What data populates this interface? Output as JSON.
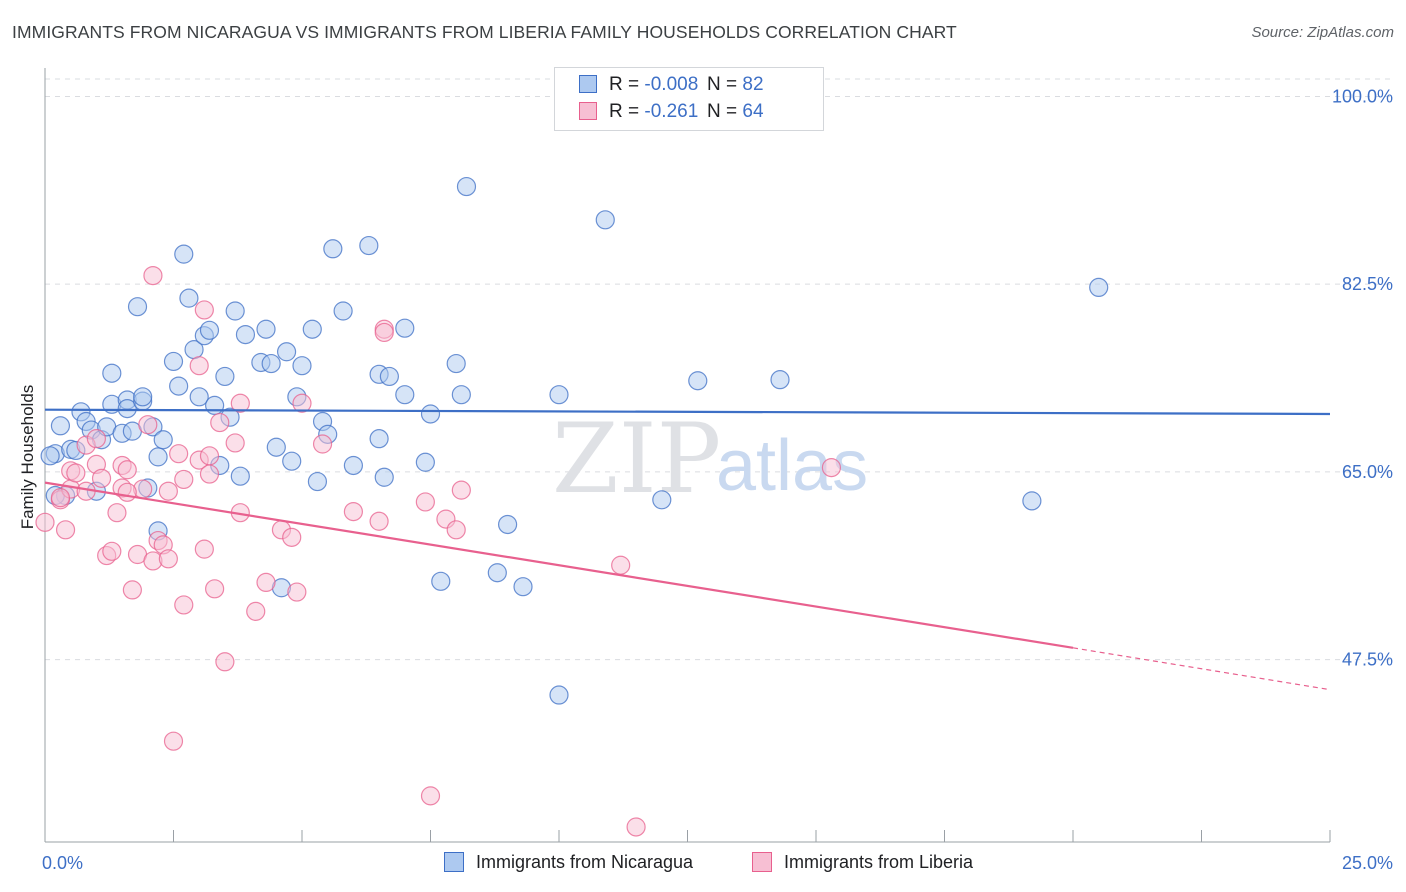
{
  "header": {
    "title": "IMMIGRANTS FROM NICARAGUA VS IMMIGRANTS FROM LIBERIA FAMILY HOUSEHOLDS CORRELATION CHART",
    "source": "Source: ZipAtlas.com"
  },
  "watermark": {
    "zip": "ZIP",
    "atlas": "atlas"
  },
  "legend_top": {
    "r_label": "R =",
    "n_label": "N =",
    "rows": [
      {
        "r": "-0.008",
        "n": "82",
        "color": "#3d6fc6"
      },
      {
        "r": "-0.261",
        "n": "64",
        "color": "#e8608e"
      }
    ]
  },
  "chart_data": {
    "type": "scatter",
    "ylabel": "Family Households",
    "xlabel": "",
    "xlim": [
      0,
      25
    ],
    "ylim": [
      30.5,
      102
    ],
    "x_tick_labels": [
      "0.0%",
      "25.0%"
    ],
    "y_ticks": [
      47.5,
      65.0,
      82.5,
      100.0
    ],
    "y_tick_labels": [
      "47.5%",
      "65.0%",
      "82.5%",
      "100.0%"
    ],
    "grid": true,
    "legend_position": "bottom",
    "series": [
      {
        "name": "Immigrants from Nicaragua",
        "color": "#3d6fc6",
        "fill": "#adc9f0",
        "trend": {
          "x": [
            0,
            25
          ],
          "y": [
            70.8,
            70.4
          ]
        },
        "points": [
          [
            0.2,
            66.7
          ],
          [
            0.3,
            69.3
          ],
          [
            0.4,
            62.8
          ],
          [
            0.5,
            67.1
          ],
          [
            0.6,
            67.0
          ],
          [
            0.7,
            70.6
          ],
          [
            0.8,
            69.7
          ],
          [
            0.9,
            68.9
          ],
          [
            1.0,
            63.2
          ],
          [
            1.1,
            68.0
          ],
          [
            1.2,
            69.2
          ],
          [
            1.3,
            74.2
          ],
          [
            1.3,
            71.3
          ],
          [
            1.5,
            68.6
          ],
          [
            1.6,
            71.7
          ],
          [
            1.6,
            70.9
          ],
          [
            1.7,
            68.8
          ],
          [
            1.8,
            80.4
          ],
          [
            1.9,
            71.6
          ],
          [
            2.0,
            63.5
          ],
          [
            2.1,
            69.2
          ],
          [
            2.2,
            59.5
          ],
          [
            2.2,
            66.4
          ],
          [
            2.3,
            68.0
          ],
          [
            2.5,
            75.3
          ],
          [
            2.6,
            73.0
          ],
          [
            2.7,
            85.3
          ],
          [
            2.8,
            81.2
          ],
          [
            2.9,
            76.4
          ],
          [
            3.0,
            72.0
          ],
          [
            3.1,
            77.7
          ],
          [
            3.2,
            78.2
          ],
          [
            3.3,
            71.2
          ],
          [
            3.4,
            65.6
          ],
          [
            3.5,
            73.9
          ],
          [
            3.6,
            70.1
          ],
          [
            3.7,
            80.0
          ],
          [
            3.8,
            64.6
          ],
          [
            3.9,
            77.8
          ],
          [
            4.2,
            75.2
          ],
          [
            4.3,
            78.3
          ],
          [
            4.4,
            75.1
          ],
          [
            4.5,
            67.3
          ],
          [
            4.6,
            54.2
          ],
          [
            4.7,
            76.2
          ],
          [
            4.8,
            66.0
          ],
          [
            4.9,
            72.0
          ],
          [
            5.0,
            74.9
          ],
          [
            5.2,
            78.3
          ],
          [
            5.3,
            64.1
          ],
          [
            5.4,
            69.7
          ],
          [
            5.5,
            68.5
          ],
          [
            5.6,
            85.8
          ],
          [
            5.8,
            80.0
          ],
          [
            6.0,
            65.6
          ],
          [
            6.3,
            86.1
          ],
          [
            6.5,
            74.1
          ],
          [
            6.5,
            68.1
          ],
          [
            6.6,
            64.5
          ],
          [
            6.7,
            73.9
          ],
          [
            7.0,
            72.2
          ],
          [
            7.0,
            78.4
          ],
          [
            7.4,
            65.9
          ],
          [
            7.5,
            70.4
          ],
          [
            7.7,
            54.8
          ],
          [
            8.0,
            75.1
          ],
          [
            8.1,
            72.2
          ],
          [
            8.2,
            91.6
          ],
          [
            8.8,
            55.6
          ],
          [
            9.0,
            60.1
          ],
          [
            9.3,
            54.3
          ],
          [
            10.0,
            44.2
          ],
          [
            10.0,
            72.2
          ],
          [
            10.9,
            88.5
          ],
          [
            12.0,
            62.4
          ],
          [
            12.7,
            73.5
          ],
          [
            14.3,
            73.6
          ],
          [
            19.2,
            62.3
          ],
          [
            20.5,
            82.2
          ],
          [
            0.1,
            66.5
          ],
          [
            0.2,
            62.8
          ],
          [
            1.9,
            72.0
          ]
        ]
      },
      {
        "name": "Immigrants from Liberia",
        "color": "#e8608e",
        "fill": "#f7bfd3",
        "trend": {
          "x": [
            0,
            20
          ],
          "y": [
            64.0,
            48.6
          ]
        },
        "trend_dashed": {
          "x": [
            20,
            25
          ],
          "y": [
            48.6,
            44.7
          ]
        },
        "points": [
          [
            0.0,
            60.3
          ],
          [
            0.3,
            62.4
          ],
          [
            0.4,
            59.6
          ],
          [
            0.5,
            63.4
          ],
          [
            0.5,
            65.1
          ],
          [
            0.6,
            64.9
          ],
          [
            0.8,
            63.2
          ],
          [
            0.8,
            67.5
          ],
          [
            1.0,
            65.7
          ],
          [
            1.0,
            68.1
          ],
          [
            1.1,
            64.4
          ],
          [
            1.2,
            57.2
          ],
          [
            1.3,
            57.6
          ],
          [
            1.4,
            61.2
          ],
          [
            1.5,
            63.5
          ],
          [
            1.5,
            65.6
          ],
          [
            1.6,
            65.2
          ],
          [
            1.7,
            54.0
          ],
          [
            1.8,
            57.3
          ],
          [
            1.9,
            63.4
          ],
          [
            2.0,
            69.4
          ],
          [
            2.1,
            83.3
          ],
          [
            2.1,
            56.7
          ],
          [
            2.2,
            58.6
          ],
          [
            2.3,
            58.2
          ],
          [
            2.4,
            56.9
          ],
          [
            2.4,
            63.2
          ],
          [
            2.5,
            39.9
          ],
          [
            2.6,
            66.7
          ],
          [
            2.7,
            52.6
          ],
          [
            2.7,
            64.3
          ],
          [
            3.0,
            74.9
          ],
          [
            3.0,
            66.1
          ],
          [
            3.1,
            57.8
          ],
          [
            3.1,
            80.1
          ],
          [
            3.2,
            66.5
          ],
          [
            3.3,
            54.1
          ],
          [
            3.4,
            69.6
          ],
          [
            3.5,
            47.3
          ],
          [
            3.7,
            67.7
          ],
          [
            3.8,
            71.4
          ],
          [
            3.8,
            61.2
          ],
          [
            4.1,
            52.0
          ],
          [
            4.3,
            54.7
          ],
          [
            4.6,
            59.6
          ],
          [
            4.8,
            58.9
          ],
          [
            4.9,
            53.8
          ],
          [
            5.0,
            71.4
          ],
          [
            5.4,
            67.6
          ],
          [
            6.0,
            61.3
          ],
          [
            6.5,
            60.4
          ],
          [
            6.6,
            78.3
          ],
          [
            7.4,
            62.2
          ],
          [
            7.5,
            34.8
          ],
          [
            7.8,
            60.6
          ],
          [
            8.0,
            59.6
          ],
          [
            8.1,
            63.3
          ],
          [
            11.2,
            56.3
          ],
          [
            11.5,
            31.9
          ],
          [
            15.3,
            65.4
          ],
          [
            0.3,
            62.6
          ],
          [
            1.6,
            63.1
          ],
          [
            3.2,
            64.8
          ],
          [
            6.6,
            78.0
          ]
        ]
      }
    ]
  }
}
